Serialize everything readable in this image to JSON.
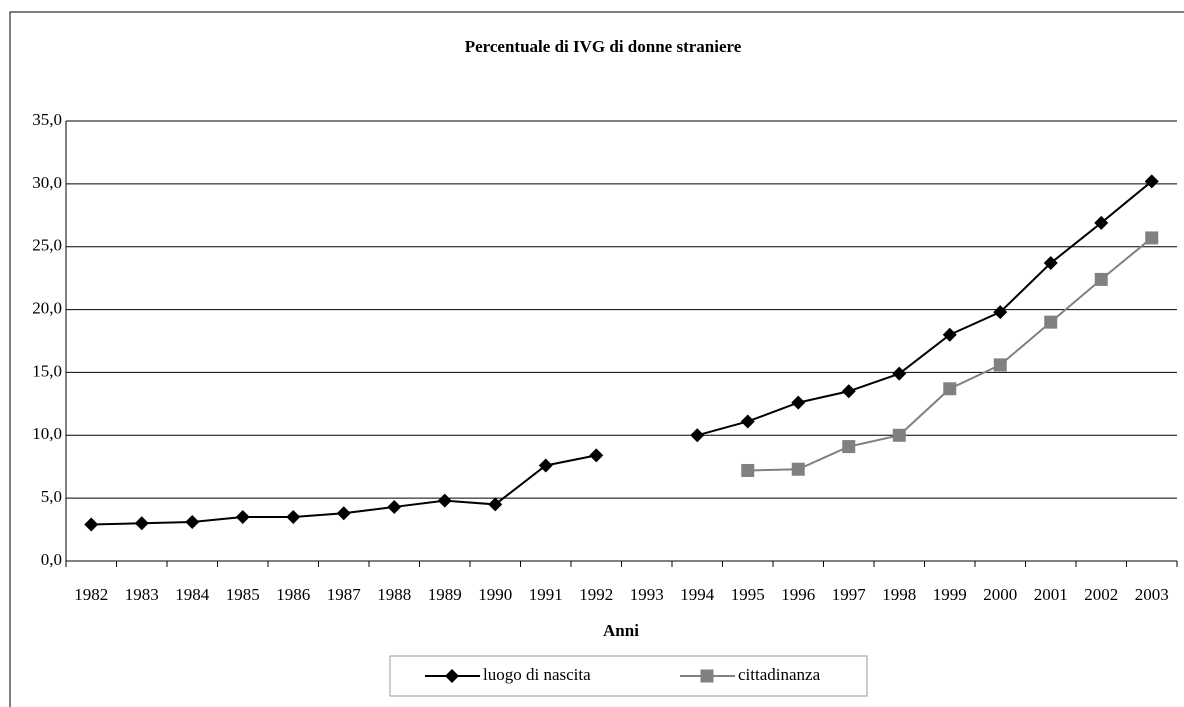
{
  "chart_data": {
    "type": "line",
    "title": "Percentuale di IVG di donne straniere",
    "x_label": "Anni",
    "categories": [
      "1982",
      "1983",
      "1984",
      "1985",
      "1986",
      "1987",
      "1988",
      "1989",
      "1990",
      "1991",
      "1992",
      "1993",
      "1994",
      "1995",
      "1996",
      "1997",
      "1998",
      "1999",
      "2000",
      "2001",
      "2002",
      "2003"
    ],
    "series": [
      {
        "name": "luogo di nascita",
        "color": "#000000",
        "marker": "diamond",
        "values": [
          2.9,
          3.0,
          3.1,
          3.5,
          3.5,
          3.8,
          4.3,
          4.8,
          4.5,
          7.6,
          8.4,
          null,
          10.0,
          11.1,
          12.6,
          13.5,
          14.9,
          18.0,
          19.8,
          23.7,
          26.9,
          30.2
        ]
      },
      {
        "name": "cittadinanza",
        "color": "#808080",
        "marker": "square",
        "values": [
          null,
          null,
          null,
          null,
          null,
          null,
          null,
          null,
          null,
          null,
          null,
          null,
          null,
          7.2,
          7.3,
          9.1,
          10.0,
          13.7,
          15.6,
          19.0,
          22.4,
          25.7
        ]
      }
    ],
    "ylim": [
      0,
      35
    ],
    "yticks": [
      {
        "value": 0,
        "label": "0,0"
      },
      {
        "value": 5,
        "label": "5,0"
      },
      {
        "value": 10,
        "label": "10,0"
      },
      {
        "value": 15,
        "label": "15,0"
      },
      {
        "value": 20,
        "label": "20,0"
      },
      {
        "value": 25,
        "label": "25,0"
      },
      {
        "value": 30,
        "label": "30,0"
      },
      {
        "value": 35,
        "label": "35,0"
      }
    ],
    "grid": true,
    "legend": "bottom"
  }
}
